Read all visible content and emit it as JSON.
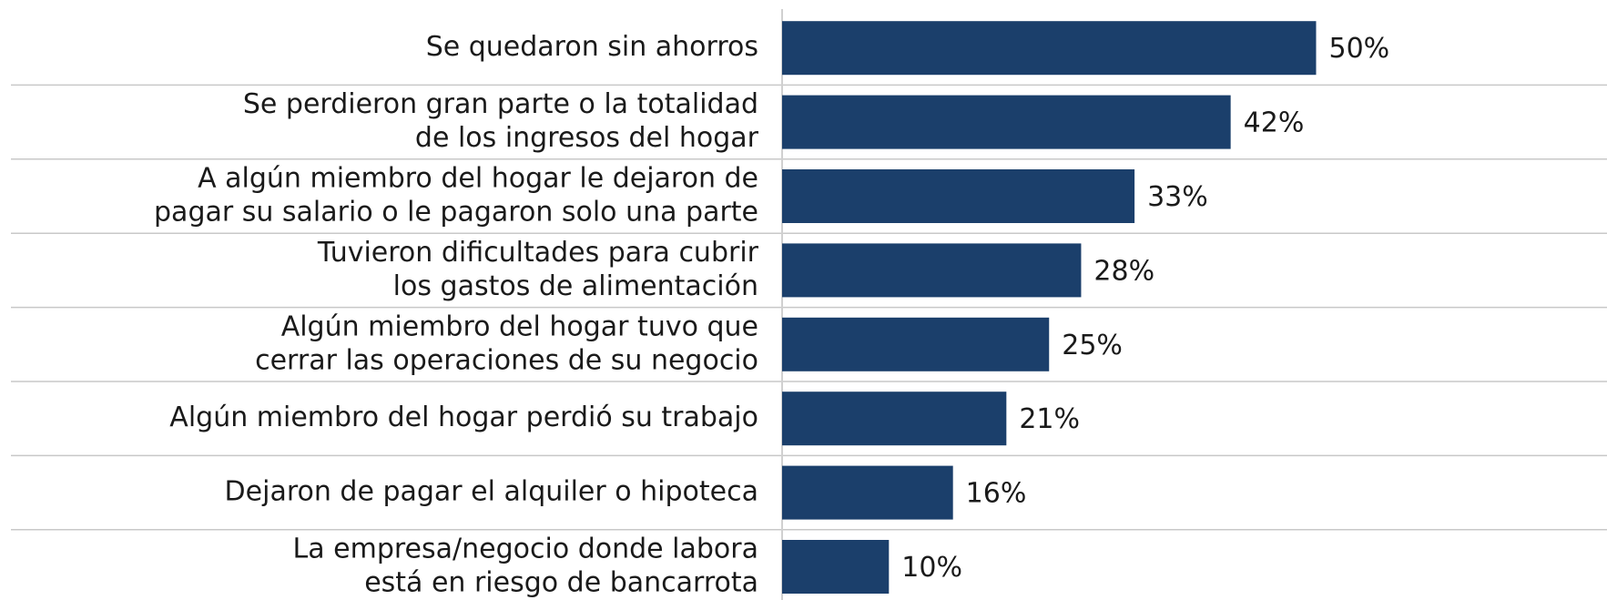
{
  "chart_data": {
    "type": "barh",
    "categories": [
      [
        "Se quedaron sin ahorros"
      ],
      [
        "Se perdieron gran parte o la totalidad",
        "de los ingresos del hogar"
      ],
      [
        "A algún miembro del hogar le dejaron de",
        "pagar su salario o le pagaron solo una parte"
      ],
      [
        "Tuvieron dificultades para cubrir",
        "los gastos de alimentación"
      ],
      [
        "Algún miembro del hogar tuvo que",
        "cerrar las operaciones de su negocio"
      ],
      [
        "Algún miembro del hogar perdió su trabajo"
      ],
      [
        "Dejaron de pagar el alquiler o hipoteca"
      ],
      [
        "La empresa/negocio donde labora",
        "está en riesgo de bancarrota"
      ]
    ],
    "values": [
      50,
      42,
      33,
      28,
      25,
      21,
      16,
      10
    ],
    "value_labels": [
      "50%",
      "42%",
      "33%",
      "28%",
      "25%",
      "21%",
      "16%",
      "10%"
    ],
    "color": "#1b3f6b"
  }
}
